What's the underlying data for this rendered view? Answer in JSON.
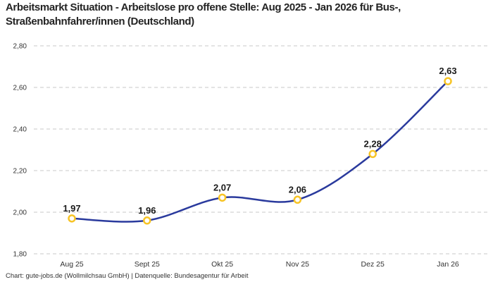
{
  "header": {
    "title": "Arbeitsmarkt Situation - Arbeitslose pro offene Stelle: Aug 2025 - Jan 2026 für Bus-, Straßenbahnfahrer/innen (Deutschland)"
  },
  "footer": {
    "credit": "Chart: gute-jobs.de (Wollmilchsau GmbH) | Datenquelle: Bundesagentur für Arbeit"
  },
  "chart_data": {
    "type": "line",
    "title": "Arbeitsmarkt Situation - Arbeitslose pro offene Stelle: Aug 2025 - Jan 2026 für Bus-, Straßenbahnfahrer/innen (Deutschland)",
    "categories": [
      "Aug 25",
      "Sept 25",
      "Okt 25",
      "Nov 25",
      "Dez 25",
      "Jan 26"
    ],
    "values": [
      1.97,
      1.96,
      2.07,
      2.06,
      2.28,
      2.63
    ],
    "value_labels": [
      "1,97",
      "1,96",
      "2,07",
      "2,06",
      "2,28",
      "2,63"
    ],
    "xlabel": "",
    "ylabel": "",
    "ylim": [
      1.8,
      2.8
    ],
    "yticks": [
      1.8,
      2.0,
      2.2,
      2.4,
      2.6,
      2.8
    ],
    "ytick_labels": [
      "1,80",
      "2,00",
      "2,20",
      "2,40",
      "2,60",
      "2,80"
    ],
    "grid": "horizontal-dashed",
    "legend": "none",
    "colors": {
      "line": "#2a3a9d",
      "marker_stroke": "#f7c426",
      "marker_fill": "#ffffff",
      "grid": "#c9c9c9",
      "value_label": "#1a1a1a",
      "tick_label": "#333333",
      "title": "#242424",
      "background": "#ffffff"
    }
  }
}
